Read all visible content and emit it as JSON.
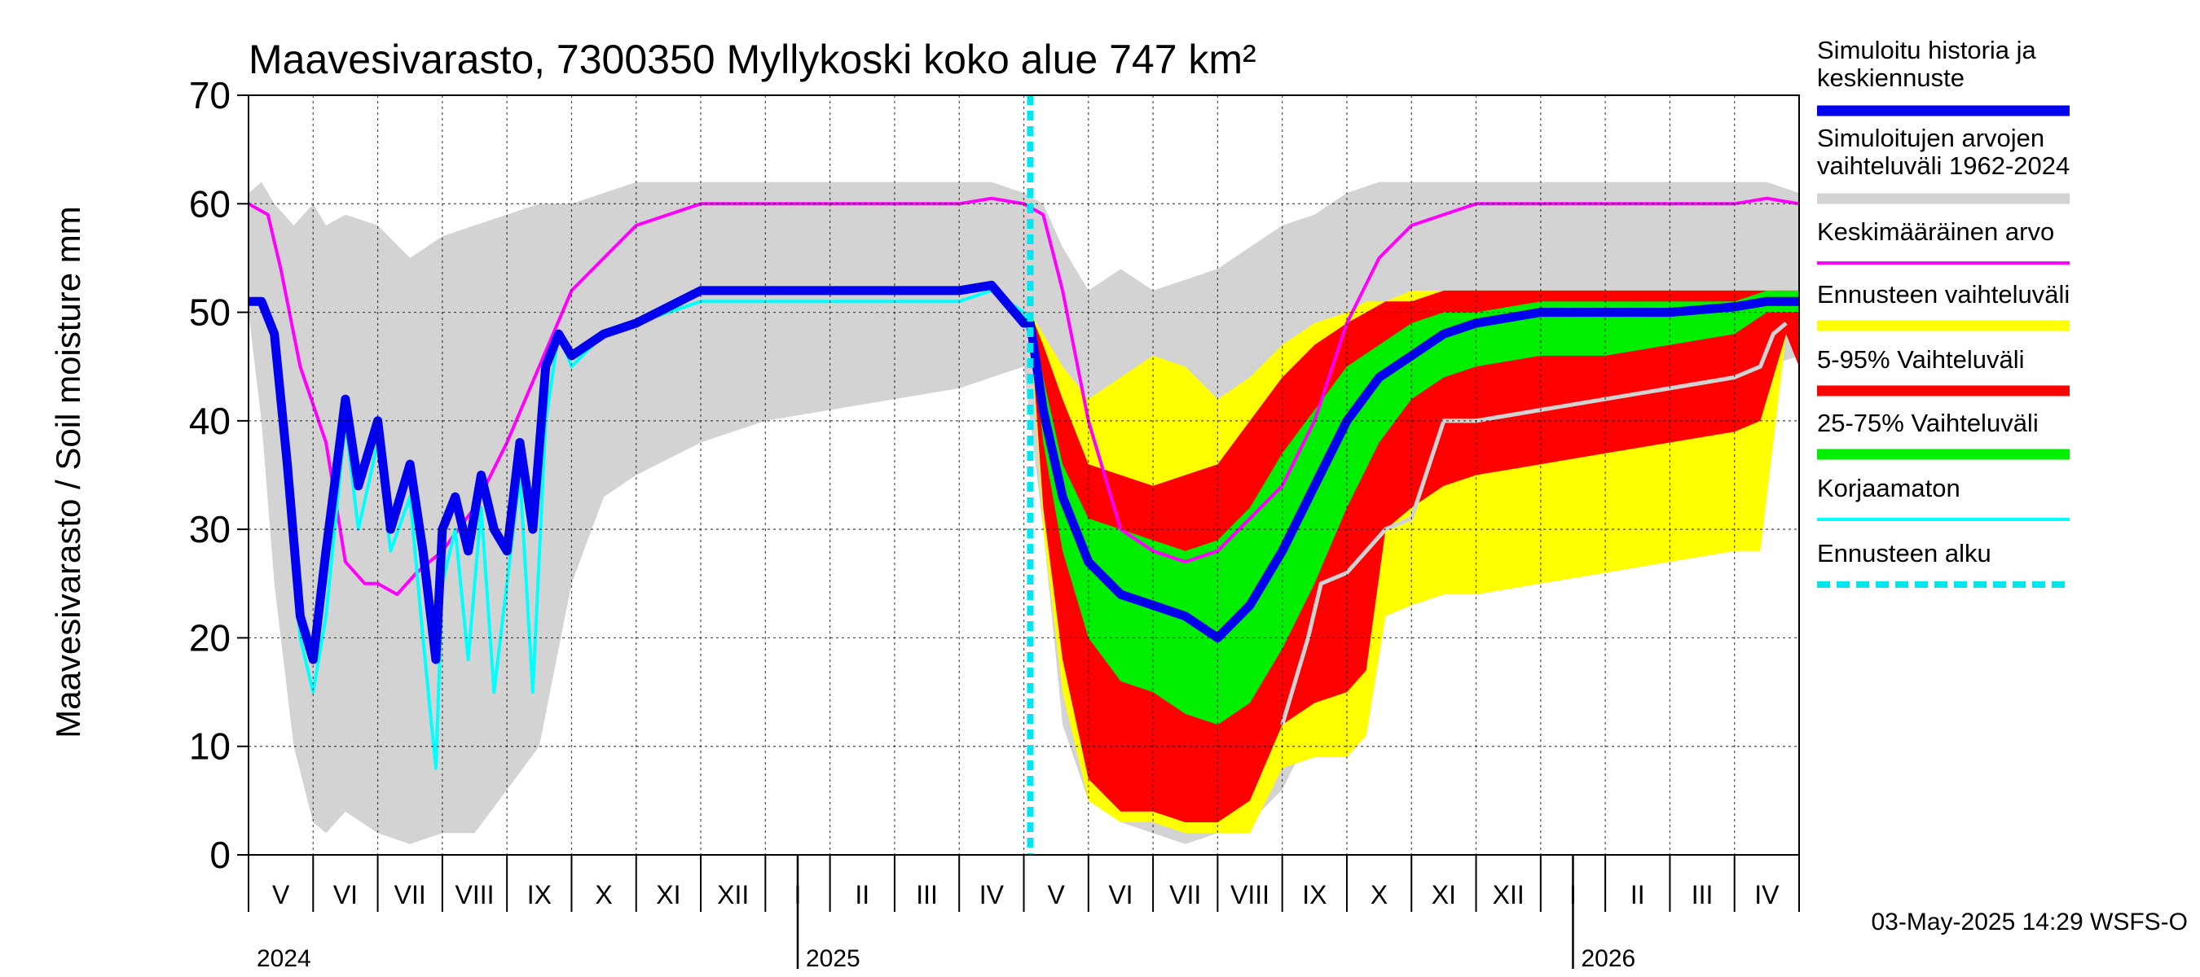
{
  "chart_data": {
    "type": "area",
    "title": "Maavesivarasto, 7300350 Myllykoski koko alue 747 km²",
    "ylabel": "Maavesivarasto / Soil moisture   mm",
    "ylim": [
      0,
      70
    ],
    "yticks": [
      0,
      10,
      20,
      30,
      40,
      50,
      60,
      70
    ],
    "xlim": [
      0,
      24
    ],
    "x_unit": "months since 2024-04-15",
    "month_labels": [
      {
        "label": "V",
        "x": 0.5
      },
      {
        "label": "VI",
        "x": 1.5
      },
      {
        "label": "VII",
        "x": 2.5
      },
      {
        "label": "VIII",
        "x": 3.5
      },
      {
        "label": "IX",
        "x": 4.5
      },
      {
        "label": "X",
        "x": 5.5
      },
      {
        "label": "XI",
        "x": 6.5
      },
      {
        "label": "XII",
        "x": 7.5
      },
      {
        "label": "I",
        "x": 8.5
      },
      {
        "label": "II",
        "x": 9.5
      },
      {
        "label": "III",
        "x": 10.5
      },
      {
        "label": "IV",
        "x": 11.5
      },
      {
        "label": "V",
        "x": 12.5
      },
      {
        "label": "VI",
        "x": 13.5
      },
      {
        "label": "VII",
        "x": 14.5
      },
      {
        "label": "VIII",
        "x": 15.5
      },
      {
        "label": "IX",
        "x": 16.5
      },
      {
        "label": "X",
        "x": 17.5
      },
      {
        "label": "XI",
        "x": 18.5
      },
      {
        "label": "XII",
        "x": 19.5
      },
      {
        "label": "I",
        "x": 20.5
      },
      {
        "label": "II",
        "x": 21.5
      },
      {
        "label": "III",
        "x": 22.5
      },
      {
        "label": "IV",
        "x": 23.5
      }
    ],
    "year_labels": [
      {
        "label": "2024",
        "x": 0
      },
      {
        "label": "2025",
        "x": 8.5
      },
      {
        "label": "2026",
        "x": 20.5
      }
    ],
    "year_boundaries": [
      8.5,
      20.5
    ],
    "forecast_start_x": 12.1,
    "legend": [
      {
        "label": "Simuloitu historia ja keskiennuste",
        "color": "#0000ee",
        "style": "thick"
      },
      {
        "label": "Simuloitujen arvojen vaihteluväli 1962-2024",
        "color": "#d3d3d3",
        "style": "thick"
      },
      {
        "label": "Keskimääräinen arvo",
        "color": "#ff00ff",
        "style": "thin"
      },
      {
        "label": "Ennusteen vaihteluväli",
        "color": "#ffff00",
        "style": "thick"
      },
      {
        "label": "5-95% Vaihteluväli",
        "color": "#ff0000",
        "style": "thick"
      },
      {
        "label": "25-75% Vaihteluväli",
        "color": "#00ee00",
        "style": "thick"
      },
      {
        "label": "Korjaamaton",
        "color": "#00ffff",
        "style": "thin"
      },
      {
        "label": "Ennusteen alku",
        "color": "#00e5ee",
        "style": "dashed"
      }
    ],
    "series": [
      {
        "name": "Simuloitujen arvojen vaihteluväli 1962-2024",
        "kind": "band",
        "color": "#d3d3d3",
        "x": [
          0,
          0.2,
          0.4,
          0.7,
          1.0,
          1.2,
          1.5,
          2.0,
          2.5,
          3.0,
          3.5,
          4.0,
          4.5,
          5.0,
          5.5,
          6.0,
          7.0,
          8.0,
          9.0,
          10.0,
          11.0,
          11.5,
          12.0,
          12.3,
          12.6,
          13.0,
          13.5,
          14.0,
          14.5,
          15.0,
          15.5,
          16.0,
          16.5,
          17.0,
          17.5,
          18.0,
          19.0,
          20.0,
          21.0,
          22.0,
          23.0,
          23.5,
          24.0
        ],
        "lower": [
          50,
          40,
          25,
          10,
          3,
          2,
          4,
          2,
          1,
          2,
          2,
          6,
          10,
          25,
          33,
          35,
          38,
          40,
          41,
          42,
          43,
          44,
          45,
          30,
          12,
          5,
          3,
          2,
          1,
          2,
          3,
          6,
          12,
          22,
          30,
          35,
          38,
          40,
          41,
          42,
          43,
          45,
          46
        ],
        "upper": [
          61,
          62,
          60,
          58,
          60,
          58,
          59,
          58,
          55,
          57,
          58,
          59,
          60,
          60,
          61,
          62,
          62,
          62,
          62,
          62,
          62,
          62,
          61,
          60,
          56,
          52,
          54,
          52,
          53,
          54,
          56,
          58,
          59,
          61,
          62,
          62,
          62,
          62,
          62,
          62,
          62,
          62,
          61
        ]
      },
      {
        "name": "Ennusteen vaihteluväli",
        "kind": "band",
        "color": "#ffff00",
        "x": [
          12.1,
          12.3,
          12.6,
          13.0,
          13.5,
          14.0,
          14.5,
          15.0,
          15.5,
          16.0,
          16.5,
          17.0,
          17.3,
          17.6,
          18.0,
          18.5,
          19.0,
          20.0,
          21.0,
          22.0,
          23.0,
          23.4,
          23.6,
          23.8,
          24.0
        ],
        "lower": [
          49,
          30,
          15,
          5,
          3,
          3,
          2,
          2,
          2,
          8,
          9,
          9,
          11,
          22,
          23,
          24,
          24,
          25,
          26,
          27,
          28,
          28,
          38,
          48,
          46
        ],
        "upper": [
          50,
          48,
          45,
          42,
          44,
          46,
          45,
          42,
          44,
          47,
          49,
          50,
          51,
          51,
          52,
          52,
          52,
          52,
          52,
          52,
          52,
          52,
          52,
          52,
          52
        ]
      },
      {
        "name": "5-95% Vaihteluväli",
        "kind": "band",
        "color": "#ff0000",
        "x": [
          12.1,
          12.3,
          12.6,
          13.0,
          13.5,
          14.0,
          14.5,
          15.0,
          15.5,
          16.0,
          16.5,
          17.0,
          17.3,
          17.6,
          18.0,
          18.5,
          19.0,
          20.0,
          21.0,
          22.0,
          23.0,
          23.4,
          23.6,
          23.8,
          24.0
        ],
        "lower": [
          49,
          32,
          18,
          7,
          4,
          4,
          3,
          3,
          5,
          12,
          14,
          15,
          17,
          30,
          32,
          34,
          35,
          36,
          37,
          38,
          39,
          40,
          44,
          48,
          45
        ],
        "upper": [
          50,
          47,
          42,
          36,
          35,
          34,
          35,
          36,
          40,
          44,
          47,
          49,
          50,
          51,
          51,
          52,
          52,
          52,
          52,
          52,
          52,
          52,
          52,
          52,
          52
        ]
      },
      {
        "name": "25-75% Vaihteluväli",
        "kind": "band",
        "color": "#00ee00",
        "x": [
          12.1,
          12.3,
          12.6,
          13.0,
          13.5,
          14.0,
          14.5,
          15.0,
          15.5,
          16.0,
          16.5,
          17.0,
          17.5,
          18.0,
          18.5,
          19.0,
          20.0,
          21.0,
          22.0,
          23.0,
          23.5,
          24.0
        ],
        "lower": [
          49,
          38,
          28,
          20,
          16,
          15,
          13,
          12,
          14,
          19,
          25,
          32,
          38,
          42,
          44,
          45,
          46,
          46,
          47,
          48,
          50,
          50
        ],
        "upper": [
          50,
          44,
          36,
          31,
          30,
          29,
          28,
          29,
          32,
          37,
          41,
          45,
          47,
          49,
          50,
          50,
          51,
          51,
          51,
          51,
          52,
          52
        ]
      },
      {
        "name": "Keskimääräinen arvo",
        "kind": "line",
        "color": "#ff00ff",
        "x": [
          0,
          0.3,
          0.5,
          0.8,
          1.2,
          1.5,
          1.8,
          2.0,
          2.3,
          2.6,
          3.0,
          3.5,
          4.0,
          4.5,
          5.0,
          5.5,
          6.0,
          7.0,
          8.0,
          9.0,
          10.0,
          11.0,
          11.5,
          12.0,
          12.3,
          12.6,
          13.0,
          13.5,
          14.0,
          14.5,
          15.0,
          15.5,
          16.0,
          16.5,
          17.0,
          17.5,
          18.0,
          19.0,
          20.0,
          21.0,
          22.0,
          23.0,
          23.5,
          24.0
        ],
        "y": [
          60,
          59,
          54,
          45,
          38,
          27,
          25,
          25,
          24,
          26,
          28,
          32,
          38,
          45,
          52,
          55,
          58,
          60,
          60,
          60,
          60,
          60,
          60.5,
          60,
          59,
          52,
          40,
          30,
          28,
          27,
          28,
          31,
          34,
          40,
          49,
          55,
          58,
          60,
          60,
          60,
          60,
          60,
          60.5,
          60
        ]
      },
      {
        "name": "Korjaamaton",
        "kind": "line",
        "color": "#00ffff",
        "x": [
          0,
          0.2,
          0.4,
          0.6,
          0.8,
          1.0,
          1.2,
          1.5,
          1.7,
          2.0,
          2.2,
          2.5,
          2.7,
          2.9,
          3.0,
          3.2,
          3.4,
          3.6,
          3.8,
          4.0,
          4.2,
          4.4,
          4.6,
          4.8,
          5.0,
          5.5,
          6.0,
          7.0,
          8.0,
          9.0,
          10.0,
          11.0,
          11.5,
          12.0,
          12.1
        ],
        "y": [
          51,
          51,
          48,
          35,
          20,
          15,
          22,
          40,
          30,
          38,
          28,
          33,
          20,
          8,
          25,
          30,
          18,
          32,
          15,
          25,
          35,
          15,
          40,
          48,
          45,
          48,
          49,
          51,
          51,
          51,
          51,
          51,
          52,
          50,
          49
        ]
      },
      {
        "name": "Simuloitu historia ja keskiennuste",
        "kind": "line",
        "color": "#0000ee",
        "x": [
          0,
          0.2,
          0.4,
          0.6,
          0.8,
          1.0,
          1.2,
          1.5,
          1.7,
          2.0,
          2.2,
          2.5,
          2.7,
          2.9,
          3.0,
          3.2,
          3.4,
          3.6,
          3.8,
          4.0,
          4.2,
          4.4,
          4.6,
          4.8,
          5.0,
          5.5,
          6.0,
          7.0,
          8.0,
          9.0,
          10.0,
          11.0,
          11.5,
          12.0,
          12.1,
          12.3,
          12.6,
          13.0,
          13.5,
          14.0,
          14.5,
          15.0,
          15.5,
          16.0,
          16.5,
          17.0,
          17.5,
          18.0,
          18.5,
          19.0,
          20.0,
          21.0,
          22.0,
          23.0,
          23.5,
          24.0
        ],
        "y": [
          51,
          51,
          48,
          36,
          22,
          18,
          28,
          42,
          34,
          40,
          30,
          36,
          28,
          18,
          30,
          33,
          28,
          35,
          30,
          28,
          38,
          30,
          45,
          48,
          46,
          48,
          49,
          52,
          52,
          52,
          52,
          52,
          52.5,
          49,
          49,
          41,
          33,
          27,
          24,
          23,
          22,
          20,
          23,
          28,
          34,
          40,
          44,
          46,
          48,
          49,
          50,
          50,
          50,
          50.5,
          51,
          51
        ]
      },
      {
        "name": "Korjaamaton (ennuste)",
        "kind": "line",
        "color": "#d3d3d3",
        "x": [
          16.0,
          16.4,
          16.6,
          17.0,
          17.3,
          17.6,
          18.0,
          18.5,
          19.0,
          20.0,
          21.0,
          22.0,
          23.0,
          23.4,
          23.6,
          23.8
        ],
        "y": [
          12,
          20,
          25,
          26,
          28,
          30,
          31,
          40,
          40,
          41,
          42,
          43,
          44,
          45,
          48,
          49
        ]
      }
    ],
    "footer": "03-May-2025 14:29 WSFS-O"
  }
}
